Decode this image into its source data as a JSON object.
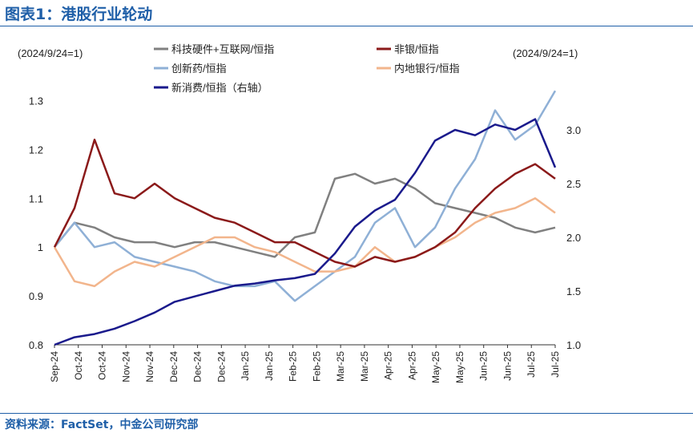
{
  "header": {
    "title": "图表1：港股行业轮动"
  },
  "footer": {
    "source": "资料来源：FactSet，中金公司研究部"
  },
  "colors": {
    "tech": "#808080",
    "nonbank": "#8b1a1a",
    "innovative_drug": "#8fb0d6",
    "domestic_bank": "#f2b58c",
    "new_consumption": "#1a1a8c"
  },
  "chart_data": {
    "type": "line",
    "left_axis_note": "(2024/9/24=1)",
    "right_axis_note": "(2024/9/24=1)",
    "x_ticks": [
      "Sep-24",
      "Oct-24",
      "Oct-24",
      "Nov-24",
      "Nov-24",
      "Dec-24",
      "Dec-24",
      "Dec-24",
      "Jan-25",
      "Jan-25",
      "Feb-25",
      "Feb-25",
      "Mar-25",
      "Mar-25",
      "Apr-25",
      "Apr-25",
      "May-25",
      "May-25",
      "Jun-25",
      "Jun-25",
      "Jul-25",
      "Jul-25"
    ],
    "y_left": {
      "min": 0.8,
      "max": 1.35,
      "ticks": [
        "0.8",
        "0.9",
        "1",
        "1.1",
        "1.2",
        "1.3"
      ]
    },
    "y_right": {
      "min": 1.0,
      "max": 3.5,
      "ticks": [
        "1.0",
        "1.5",
        "2.0",
        "2.5",
        "3.0"
      ]
    },
    "legend": [
      "科技硬件+互联网/恒指",
      "非银/恒指",
      "创新药/恒指",
      "内地银行/恒指",
      "新消费/恒指（右轴）"
    ],
    "series": [
      {
        "name": "科技硬件+互联网/恒指",
        "color_key": "tech",
        "axis": "left",
        "values": [
          1.0,
          1.05,
          1.04,
          1.02,
          1.01,
          1.01,
          1.0,
          1.01,
          1.01,
          1.0,
          0.99,
          0.98,
          1.02,
          1.03,
          1.14,
          1.15,
          1.13,
          1.14,
          1.12,
          1.09,
          1.08,
          1.07,
          1.06,
          1.04,
          1.03,
          1.04
        ]
      },
      {
        "name": "非银/恒指",
        "color_key": "nonbank",
        "axis": "left",
        "values": [
          1.0,
          1.08,
          1.22,
          1.11,
          1.1,
          1.13,
          1.1,
          1.08,
          1.06,
          1.05,
          1.03,
          1.01,
          1.01,
          0.99,
          0.97,
          0.96,
          0.98,
          0.97,
          0.98,
          1.0,
          1.03,
          1.08,
          1.12,
          1.15,
          1.17,
          1.14
        ]
      },
      {
        "name": "创新药/恒指",
        "color_key": "innovative_drug",
        "axis": "left",
        "values": [
          1.0,
          1.05,
          1.0,
          1.01,
          0.98,
          0.97,
          0.96,
          0.95,
          0.93,
          0.92,
          0.92,
          0.93,
          0.89,
          0.92,
          0.95,
          0.98,
          1.05,
          1.08,
          1.0,
          1.04,
          1.12,
          1.18,
          1.28,
          1.22,
          1.25,
          1.32
        ]
      },
      {
        "name": "内地银行/恒指",
        "color_key": "domestic_bank",
        "axis": "left",
        "values": [
          1.0,
          0.93,
          0.92,
          0.95,
          0.97,
          0.96,
          0.98,
          1.0,
          1.02,
          1.02,
          1.0,
          0.99,
          0.97,
          0.95,
          0.95,
          0.96,
          1.0,
          0.97,
          0.98,
          1.0,
          1.02,
          1.05,
          1.07,
          1.08,
          1.1,
          1.07
        ]
      },
      {
        "name": "新消费/恒指（右轴）",
        "color_key": "new_consumption",
        "axis": "right",
        "values": [
          1.0,
          1.07,
          1.1,
          1.15,
          1.22,
          1.3,
          1.4,
          1.45,
          1.5,
          1.55,
          1.57,
          1.6,
          1.62,
          1.66,
          1.85,
          2.1,
          2.25,
          2.35,
          2.6,
          2.9,
          3.0,
          2.95,
          3.05,
          3.0,
          3.1,
          2.65
        ]
      }
    ]
  }
}
